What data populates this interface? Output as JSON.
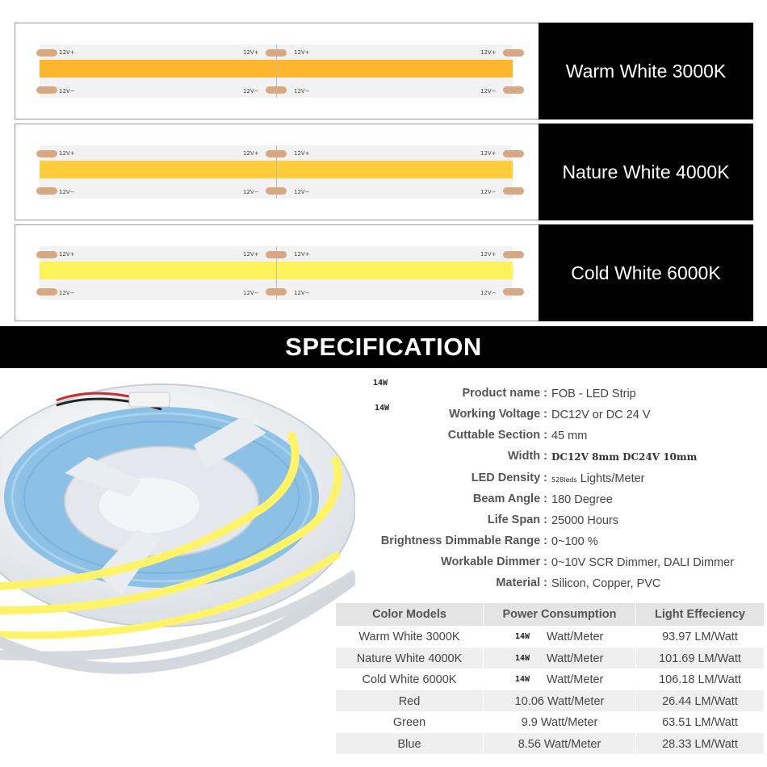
{
  "panels": [
    {
      "label": "Warm White 3000K",
      "color": "#ffb52e",
      "marks": {
        "top": "12V+",
        "bottom": "12V−"
      }
    },
    {
      "label": "Nature White 4000K",
      "color": "#ffcd3a",
      "marks": {
        "top": "12V+",
        "bottom": "12V−"
      }
    },
    {
      "label": "Cold White 6000K",
      "color": "#fdf25a",
      "marks": {
        "top": "12V+",
        "bottom": "12V−"
      }
    }
  ],
  "banner": "SPECIFICATION",
  "tiny_notes": [
    "14W",
    "14W"
  ],
  "specs": [
    {
      "key": "Product name :",
      "value": "FOB - LED Strip"
    },
    {
      "key": "Working Voltage :",
      "value": "DC12V or DC 24 V"
    },
    {
      "key": "Cuttable Section :",
      "value": "45 mm"
    },
    {
      "key": "Width :",
      "value": "DC12V 8mm  DC24V 10mm"
    },
    {
      "key": "LED Density :",
      "value_prefix": "528leds",
      "value": "Lights/Meter"
    },
    {
      "key": "Beam Angle :",
      "value": "180 Degree"
    },
    {
      "key": "Life Span :",
      "value": "25000 Hours"
    },
    {
      "key": "Brightness Dimmable Range :",
      "value": "0~100 %"
    },
    {
      "key": "Workable Dimmer :",
      "value": "0~10V SCR Dimmer, DALI Dimmer"
    },
    {
      "key": "Material :",
      "value": "Silicon, Copper, PVC"
    }
  ],
  "table": {
    "headers": [
      "Color Models",
      "Power Consumption",
      "Light Effeciency"
    ],
    "rows": [
      {
        "model": "Warm White 3000K",
        "power_prefix": "14W",
        "power": "Watt/Meter",
        "efficiency": "93.97 LM/Watt"
      },
      {
        "model": "Nature White 4000K",
        "power_prefix": "14W",
        "power": "Watt/Meter",
        "efficiency": "101.69 LM/Watt"
      },
      {
        "model": "Cold White 6000K",
        "power_prefix": "14W",
        "power": "Watt/Meter",
        "efficiency": "106.18 LM/Watt"
      },
      {
        "model": "Red",
        "power": "10.06 Watt/Meter",
        "efficiency": "26.44 LM/Watt"
      },
      {
        "model": "Green",
        "power": "9.9 Watt/Meter",
        "efficiency": "63.51 LM/Watt"
      },
      {
        "model": "Blue",
        "power": "8.56 Watt/Meter",
        "efficiency": "28.33 LM/Watt"
      }
    ]
  }
}
